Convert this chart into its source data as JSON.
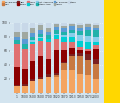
{
  "years": [
    "1",
    "1000",
    "1500",
    "1600",
    "1700",
    "1820",
    "1870",
    "1913",
    "1950",
    "1973",
    "2003"
  ],
  "series": [
    {
      "name": "W. Europe",
      "color": "#f4a460",
      "values": [
        10,
        9,
        17,
        20,
        22,
        23,
        33,
        33,
        26,
        25,
        20
      ]
    },
    {
      "name": "USA",
      "color": "#c87941",
      "values": [
        0,
        0,
        0,
        0,
        0,
        2,
        9,
        19,
        27,
        22,
        21
      ]
    },
    {
      "name": "Jap",
      "color": "#7b2020",
      "values": [
        1,
        3,
        3,
        3,
        4,
        3,
        2,
        3,
        3,
        8,
        7
      ]
    },
    {
      "name": "China",
      "color": "#8b0000",
      "values": [
        26,
        22,
        25,
        29,
        22,
        33,
        17,
        9,
        5,
        5,
        15
      ]
    },
    {
      "name": "India",
      "color": "#e07070",
      "values": [
        33,
        29,
        24,
        22,
        24,
        16,
        12,
        8,
        4,
        3,
        5
      ]
    },
    {
      "name": "FSU",
      "color": "#00ced1",
      "values": [
        0,
        0,
        3,
        4,
        4,
        5,
        7,
        8,
        9,
        9,
        4
      ]
    },
    {
      "name": "Lat. America",
      "color": "#87ceeb",
      "values": [
        0,
        0,
        3,
        1,
        1,
        2,
        3,
        5,
        8,
        9,
        8
      ]
    },
    {
      "name": "Other Asia",
      "color": "#20b2aa",
      "values": [
        5,
        7,
        5,
        5,
        5,
        5,
        4,
        5,
        6,
        9,
        10
      ]
    },
    {
      "name": "E. Europe",
      "color": "#5b9bd5",
      "values": [
        5,
        6,
        5,
        5,
        5,
        5,
        5,
        5,
        4,
        4,
        3
      ]
    },
    {
      "name": "Africa",
      "color": "#a0a8a0",
      "values": [
        7,
        11,
        8,
        7,
        6,
        4,
        3,
        3,
        4,
        4,
        4
      ]
    },
    {
      "name": "Other",
      "color": "#c8d8e8",
      "values": [
        13,
        13,
        7,
        4,
        7,
        2,
        5,
        2,
        4,
        2,
        3
      ]
    }
  ],
  "background_color": "#d3e4ef",
  "yellow_color": "#ffd700",
  "ylim": [
    0,
    100
  ],
  "yticks": [
    20,
    40,
    60,
    80,
    100
  ],
  "figsize": [
    1.2,
    1.03
  ],
  "dpi": 100
}
